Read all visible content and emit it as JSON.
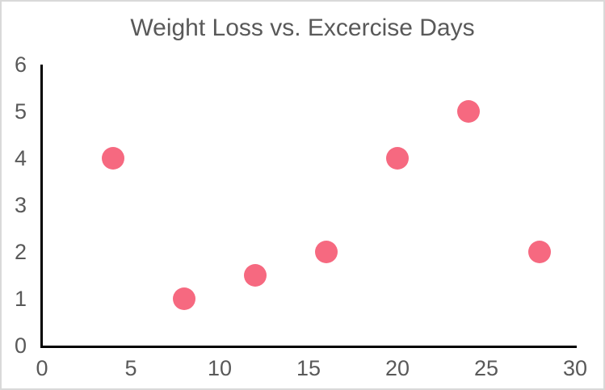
{
  "chart": {
    "title": "Weight Loss vs. Excercise Days"
  },
  "chart_data": {
    "type": "scatter",
    "title": "Weight Loss vs. Excercise Days",
    "points": [
      {
        "x": 4,
        "y": 4
      },
      {
        "x": 8,
        "y": 1
      },
      {
        "x": 12,
        "y": 1.5
      },
      {
        "x": 16,
        "y": 2
      },
      {
        "x": 20,
        "y": 4
      },
      {
        "x": 24,
        "y": 5
      },
      {
        "x": 28,
        "y": 2
      }
    ],
    "xlabel": "",
    "ylabel": "",
    "xlim": [
      0,
      30
    ],
    "ylim": [
      0,
      6
    ],
    "x_ticks": [
      0,
      5,
      10,
      15,
      20,
      25,
      30
    ],
    "y_ticks": [
      0,
      1,
      2,
      3,
      4,
      5,
      6
    ],
    "grid": false,
    "legend": null,
    "marker_color": "#F66980",
    "axis_color": "#000000",
    "tick_label_color": "#595959",
    "title_color": "#595959"
  }
}
